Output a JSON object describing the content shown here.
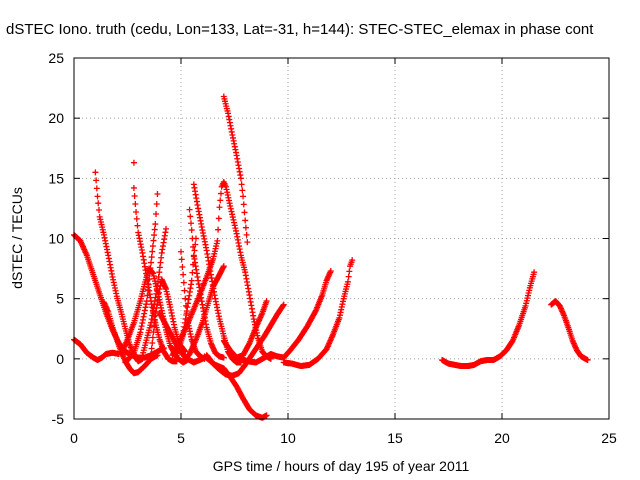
{
  "chart_data": {
    "type": "scatter",
    "title": "dSTEC Iono. truth (cedu, Lon=133, Lat=-31, h=144): STEC-STEC_elemax in phase cont",
    "xlabel": "GPS time / hours of day 195 of year 2011",
    "ylabel": "dSTEC  / TECUs",
    "xlim": [
      0,
      25
    ],
    "ylim": [
      -5,
      25
    ],
    "xticks": [
      "0",
      "5",
      "10",
      "15",
      "20",
      "25"
    ],
    "yticks": [
      "-5",
      "0",
      "5",
      "10",
      "15",
      "20",
      "25"
    ],
    "grid": true,
    "marker": "+",
    "color": "#ff0000",
    "series": [
      {
        "points": [
          [
            0.0,
            10.3
          ],
          [
            0.3,
            9.8
          ],
          [
            0.6,
            8.6
          ],
          [
            0.9,
            7.0
          ],
          [
            1.2,
            5.4
          ],
          [
            1.5,
            3.8
          ],
          [
            1.8,
            2.4
          ],
          [
            2.1,
            1.3
          ],
          [
            2.4,
            0.6
          ],
          [
            2.7,
            0.3
          ],
          [
            3.0,
            0.1
          ],
          [
            3.3,
            0.1
          ],
          [
            3.6,
            0.3
          ],
          [
            3.9,
            0.6
          ],
          [
            4.2,
            0.9
          ]
        ]
      },
      {
        "points": [
          [
            0.0,
            1.6
          ],
          [
            0.3,
            1.2
          ],
          [
            0.6,
            0.5
          ],
          [
            0.9,
            0.1
          ],
          [
            1.1,
            -0.1
          ],
          [
            1.3,
            0.1
          ],
          [
            1.5,
            0.4
          ],
          [
            1.8,
            0.5
          ],
          [
            2.1,
            0.4
          ]
        ]
      },
      {
        "points": [
          [
            1.0,
            15.5
          ],
          [
            1.1,
            13.5
          ],
          [
            1.2,
            11.8
          ],
          [
            1.4,
            10.3
          ],
          [
            1.6,
            8.6
          ],
          [
            1.8,
            6.8
          ],
          [
            2.0,
            5.2
          ],
          [
            2.2,
            3.9
          ],
          [
            2.4,
            2.5
          ],
          [
            2.6,
            1.2
          ],
          [
            2.8,
            0.3
          ],
          [
            3.0,
            -0.2
          ],
          [
            3.2,
            0.0
          ]
        ]
      },
      {
        "points": [
          [
            1.4,
            4.7
          ],
          [
            1.6,
            3.9
          ],
          [
            1.8,
            2.6
          ],
          [
            2.0,
            1.6
          ],
          [
            2.2,
            0.6
          ],
          [
            2.4,
            -0.2
          ],
          [
            2.6,
            -0.8
          ],
          [
            2.8,
            -1.2
          ],
          [
            3.0,
            -1.1
          ],
          [
            3.3,
            -0.6
          ],
          [
            3.6,
            0.0
          ],
          [
            3.9,
            0.3
          ]
        ]
      },
      {
        "points": [
          [
            2.8,
            16.3
          ],
          [
            2.8,
            14.2
          ],
          [
            2.9,
            12.2
          ],
          [
            3.0,
            10.5
          ],
          [
            3.2,
            8.8
          ],
          [
            3.4,
            6.8
          ],
          [
            3.6,
            4.8
          ],
          [
            3.8,
            3.0
          ],
          [
            4.0,
            1.6
          ],
          [
            4.2,
            0.6
          ],
          [
            4.4,
            0.0
          ],
          [
            4.6,
            -0.2
          ],
          [
            4.8,
            -0.2
          ]
        ]
      },
      {
        "points": [
          [
            2.2,
            0.4
          ],
          [
            2.5,
            1.6
          ],
          [
            2.8,
            3.0
          ],
          [
            3.1,
            4.8
          ],
          [
            3.3,
            6.2
          ],
          [
            3.5,
            7.5
          ],
          [
            3.7,
            7.1
          ],
          [
            3.9,
            5.6
          ],
          [
            4.1,
            4.0
          ],
          [
            4.3,
            2.4
          ],
          [
            4.5,
            1.1
          ],
          [
            4.8,
            0.1
          ],
          [
            5.1,
            -0.3
          ],
          [
            5.4,
            0.0
          ]
        ]
      },
      {
        "points": [
          [
            2.4,
            -0.3
          ],
          [
            2.8,
            0.5
          ],
          [
            3.1,
            2.2
          ],
          [
            3.4,
            4.8
          ],
          [
            3.6,
            8.0
          ],
          [
            3.8,
            11.2
          ],
          [
            3.9,
            13.7
          ]
        ]
      },
      {
        "points": [
          [
            3.2,
            0.3
          ],
          [
            3.6,
            3.0
          ],
          [
            3.9,
            6.0
          ],
          [
            4.1,
            8.8
          ],
          [
            4.3,
            10.8
          ]
        ]
      },
      {
        "points": [
          [
            3.6,
            0.4
          ],
          [
            3.8,
            3.6
          ],
          [
            4.0,
            5.8
          ],
          [
            4.1,
            6.6
          ],
          [
            4.3,
            5.8
          ],
          [
            4.5,
            4.3
          ],
          [
            4.7,
            2.6
          ],
          [
            4.9,
            1.3
          ],
          [
            5.2,
            0.6
          ]
        ]
      },
      {
        "points": [
          [
            4.0,
            3.8
          ],
          [
            4.3,
            2.8
          ],
          [
            4.6,
            1.8
          ],
          [
            4.9,
            0.8
          ],
          [
            5.2,
            0.1
          ],
          [
            5.6,
            -0.3
          ],
          [
            6.0,
            0.0
          ]
        ]
      },
      {
        "points": [
          [
            5.0,
            8.9
          ],
          [
            5.1,
            7.0
          ],
          [
            5.2,
            5.0
          ],
          [
            5.3,
            3.2
          ],
          [
            5.5,
            1.6
          ],
          [
            5.7,
            0.6
          ],
          [
            5.9,
            0.2
          ],
          [
            6.1,
            0.0
          ]
        ]
      },
      {
        "points": [
          [
            4.8,
            0.3
          ],
          [
            5.1,
            2.0
          ],
          [
            5.3,
            4.3
          ],
          [
            5.5,
            6.5
          ],
          [
            5.6,
            8.5
          ],
          [
            5.7,
            10.0
          ]
        ]
      },
      {
        "points": [
          [
            5.4,
            12.4
          ],
          [
            5.5,
            10.7
          ],
          [
            5.6,
            8.6
          ],
          [
            5.8,
            6.5
          ],
          [
            6.0,
            4.5
          ],
          [
            6.2,
            2.6
          ],
          [
            6.4,
            1.3
          ],
          [
            6.6,
            0.5
          ],
          [
            6.8,
            0.2
          ],
          [
            7.0,
            0.1
          ]
        ]
      },
      {
        "points": [
          [
            5.6,
            14.5
          ],
          [
            5.8,
            12.5
          ],
          [
            6.0,
            10.7
          ],
          [
            6.2,
            9.0
          ],
          [
            6.4,
            7.0
          ],
          [
            6.6,
            5.0
          ],
          [
            6.8,
            3.3
          ],
          [
            7.0,
            1.9
          ],
          [
            7.2,
            0.6
          ],
          [
            7.4,
            0.0
          ],
          [
            7.6,
            -0.3
          ],
          [
            7.8,
            -0.3
          ]
        ]
      },
      {
        "points": [
          [
            4.6,
            0.3
          ],
          [
            5.0,
            1.7
          ],
          [
            5.4,
            3.3
          ],
          [
            5.8,
            5.0
          ],
          [
            6.2,
            6.8
          ],
          [
            6.5,
            8.3
          ],
          [
            6.7,
            9.8
          ],
          [
            6.8,
            12.6
          ],
          [
            6.9,
            14.3
          ],
          [
            7.0,
            14.7
          ],
          [
            7.1,
            14.3
          ],
          [
            7.3,
            12.7
          ],
          [
            7.6,
            10.4
          ],
          [
            7.8,
            8.6
          ],
          [
            8.0,
            7.2
          ],
          [
            8.2,
            5.3
          ],
          [
            8.4,
            3.3
          ],
          [
            8.6,
            1.7
          ],
          [
            8.8,
            0.6
          ],
          [
            9.0,
            0.2
          ],
          [
            9.2,
            0.0
          ]
        ]
      },
      {
        "points": [
          [
            7.0,
            21.8
          ],
          [
            7.2,
            20.4
          ],
          [
            7.4,
            18.6
          ],
          [
            7.6,
            16.9
          ],
          [
            7.8,
            15.0
          ],
          [
            7.9,
            13.5
          ],
          [
            8.0,
            11.5
          ],
          [
            8.1,
            9.7
          ]
        ]
      },
      {
        "points": [
          [
            5.1,
            -0.2
          ],
          [
            5.4,
            0.4
          ],
          [
            5.7,
            1.6
          ],
          [
            6.0,
            3.0
          ],
          [
            6.3,
            4.8
          ],
          [
            6.5,
            6.0
          ],
          [
            6.8,
            7.0
          ],
          [
            7.0,
            7.7
          ]
        ]
      },
      {
        "points": [
          [
            6.1,
            0.2
          ],
          [
            6.6,
            -0.5
          ],
          [
            7.0,
            -0.8
          ],
          [
            7.3,
            -1.5
          ],
          [
            7.6,
            -2.3
          ],
          [
            7.9,
            -3.3
          ],
          [
            8.2,
            -4.2
          ],
          [
            8.5,
            -4.7
          ],
          [
            8.8,
            -4.9
          ],
          [
            9.0,
            -4.7
          ]
        ]
      },
      {
        "points": [
          [
            6.2,
            0.3
          ],
          [
            6.5,
            -0.4
          ],
          [
            6.8,
            -0.9
          ],
          [
            7.1,
            -1.3
          ],
          [
            7.4,
            -1.4
          ],
          [
            7.7,
            -1.2
          ],
          [
            8.0,
            -0.5
          ],
          [
            8.3,
            0.3
          ],
          [
            8.6,
            1.1
          ],
          [
            8.9,
            1.9
          ],
          [
            9.2,
            2.8
          ],
          [
            9.5,
            3.7
          ],
          [
            9.8,
            4.5
          ]
        ]
      },
      {
        "points": [
          [
            7.0,
            1.5
          ],
          [
            7.3,
            0.7
          ],
          [
            7.6,
            0.1
          ],
          [
            7.9,
            0.3
          ],
          [
            8.2,
            1.3
          ],
          [
            8.5,
            2.6
          ],
          [
            8.8,
            3.8
          ],
          [
            9.0,
            4.8
          ]
        ]
      },
      {
        "points": [
          [
            7.7,
            0.1
          ],
          [
            8.1,
            -0.2
          ],
          [
            8.5,
            -0.3
          ],
          [
            8.9,
            0.1
          ],
          [
            9.2,
            0.4
          ],
          [
            9.5,
            0.2
          ],
          [
            9.8,
            0.1
          ],
          [
            10.1,
            0.7
          ],
          [
            10.5,
            1.6
          ],
          [
            10.9,
            2.7
          ],
          [
            11.3,
            4.0
          ],
          [
            11.6,
            5.3
          ],
          [
            11.8,
            6.5
          ],
          [
            12.0,
            7.3
          ]
        ]
      },
      {
        "points": [
          [
            9.8,
            -0.3
          ],
          [
            10.2,
            -0.4
          ],
          [
            10.6,
            -0.6
          ],
          [
            11.0,
            -0.5
          ],
          [
            11.4,
            0.0
          ],
          [
            11.8,
            0.8
          ],
          [
            12.1,
            2.0
          ],
          [
            12.4,
            3.4
          ],
          [
            12.6,
            5.0
          ],
          [
            12.8,
            6.4
          ],
          [
            12.9,
            7.7
          ],
          [
            13.0,
            8.2
          ]
        ]
      },
      {
        "points": [
          [
            17.2,
            -0.1
          ],
          [
            17.5,
            -0.4
          ],
          [
            17.8,
            -0.5
          ],
          [
            18.1,
            -0.6
          ],
          [
            18.4,
            -0.6
          ],
          [
            18.7,
            -0.5
          ],
          [
            19.0,
            -0.2
          ],
          [
            19.3,
            -0.1
          ],
          [
            19.6,
            -0.1
          ],
          [
            19.9,
            0.2
          ],
          [
            20.2,
            0.7
          ],
          [
            20.5,
            1.5
          ],
          [
            20.8,
            2.8
          ],
          [
            21.1,
            4.4
          ],
          [
            21.3,
            5.9
          ],
          [
            21.5,
            7.2
          ]
        ]
      },
      {
        "points": [
          [
            22.3,
            4.5
          ],
          [
            22.5,
            4.8
          ],
          [
            22.7,
            4.4
          ],
          [
            22.9,
            3.6
          ],
          [
            23.1,
            2.6
          ],
          [
            23.3,
            1.5
          ],
          [
            23.5,
            0.7
          ],
          [
            23.7,
            0.2
          ],
          [
            23.9,
            0.0
          ],
          [
            24.0,
            -0.1
          ]
        ]
      }
    ]
  }
}
